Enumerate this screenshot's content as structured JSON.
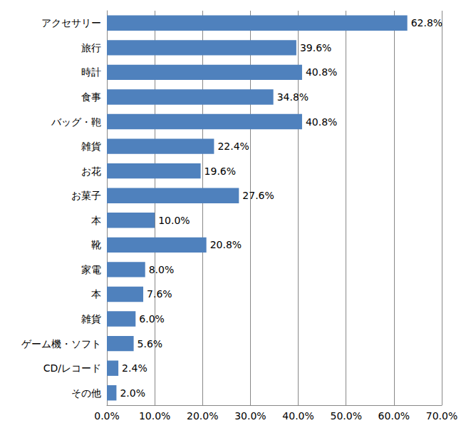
{
  "chart_data": {
    "type": "bar",
    "orientation": "horizontal",
    "categories": [
      "アクセサリー",
      "旅行",
      "時計",
      "食事",
      "バッグ・鞄",
      "雑貨",
      "お花",
      "お菓子",
      "本",
      "靴",
      "家電",
      "本",
      "雑貨",
      "ゲーム機・ソフト",
      "CD/レコード",
      "その他"
    ],
    "values": [
      62.8,
      39.6,
      40.8,
      34.8,
      40.8,
      22.4,
      19.6,
      27.6,
      10.0,
      20.8,
      8.0,
      7.6,
      6.0,
      5.6,
      2.4,
      2.0
    ],
    "value_labels": [
      "62.8%",
      "39.6%",
      "40.8%",
      "34.8%",
      "40.8%",
      "22.4%",
      "19.6%",
      "27.6%",
      "10.0%",
      "20.8%",
      "8.0%",
      "7.6%",
      "6.0%",
      "5.6%",
      "2.4%",
      "2.0%"
    ],
    "color": "#4f81bd",
    "xlim": [
      0,
      70
    ],
    "xticks": [
      {
        "value": 0,
        "label": "0.0%"
      },
      {
        "value": 10,
        "label": "10.0%"
      },
      {
        "value": 20,
        "label": "20.0%"
      },
      {
        "value": 30,
        "label": "30.0%"
      },
      {
        "value": 40,
        "label": "40.0%"
      },
      {
        "value": 50,
        "label": "50.0%"
      },
      {
        "value": 60,
        "label": "60.0%"
      },
      {
        "value": 70,
        "label": "70.0%"
      }
    ],
    "grid": true,
    "data_labels": true
  }
}
